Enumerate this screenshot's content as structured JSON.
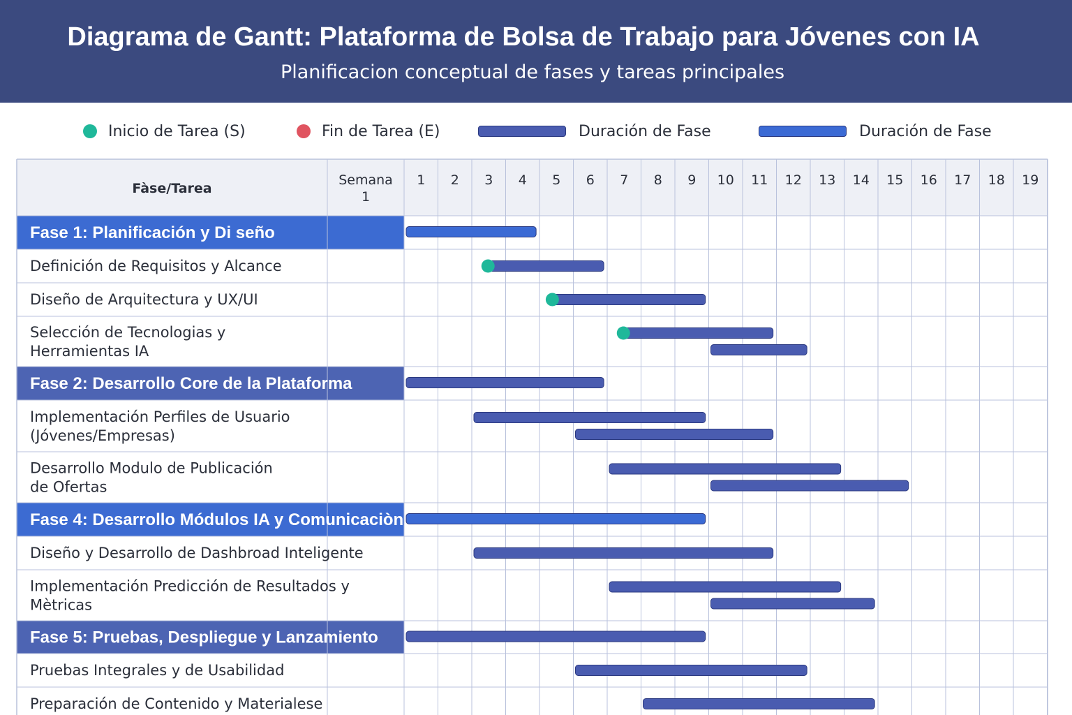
{
  "header": {
    "title": "Diagrama de Gantt: Plataforma de Bolsa de Trabajo para Jóvenes con IA",
    "subtitle": "Planificacion conceptual de fases y tareas principales"
  },
  "legend": [
    {
      "label": "Inicio de Tarea (S)",
      "kind": "dot",
      "color": "#1fb89a"
    },
    {
      "label": "Fin de Tarea (E)",
      "kind": "dot",
      "color": "#e05460"
    },
    {
      "label": "Duración de Fase",
      "kind": "bar",
      "color": "#4a5cb0"
    },
    {
      "label": "Duración de Fase",
      "kind": "bar",
      "color": "#3b6ad4"
    }
  ],
  "colors": {
    "phase_bar": "#4a5cb0",
    "phase_bar_alt": "#3b6ad4",
    "task_bar": "#4a5cb0",
    "start_dot": "#1fb89a",
    "grid": "#b9c2dc",
    "header_bg": "#3b4a7f",
    "phase_row_bg": "#4d64b3",
    "phase_row_bg_alt": "#3c6bd2"
  },
  "table": {
    "task_header": "Fàse/Tarea",
    "week_header": "Semana\n1",
    "week_numbers": [
      "1",
      "2",
      "3",
      "4",
      "5",
      "6",
      "7",
      "8",
      "9",
      "10",
      "11",
      "12",
      "13",
      "14",
      "15",
      "16",
      "17",
      "18",
      "19"
    ]
  },
  "rows": [
    {
      "type": "phase",
      "label": "Fase 1: Planificación y Di seño",
      "alt": true,
      "bars": [
        {
          "start": 1,
          "end": 4.9,
          "style": "phase_alt"
        }
      ]
    },
    {
      "type": "task",
      "label": [
        "Definición de Requisitos y Alcance"
      ],
      "dot": 3,
      "bars": [
        {
          "start": 3.4,
          "end": 6.9
        }
      ]
    },
    {
      "type": "task",
      "label": [
        "Diseño de Arquitectura y UX/UI"
      ],
      "dot": 4.9,
      "bars": [
        {
          "start": 5.3,
          "end": 9.9
        }
      ]
    },
    {
      "type": "task",
      "label": [
        "Selección de Tecnologias y",
        "Herramientas IA"
      ],
      "dot": 7,
      "bars": [
        {
          "start": 7.4,
          "end": 11.9
        },
        {
          "start": 10,
          "end": 12.9
        }
      ]
    },
    {
      "type": "phase",
      "label": "Fase 2: Desarrollo Core de la Plataforma",
      "alt": false,
      "bars": [
        {
          "start": 1,
          "end": 6.9,
          "style": "phase"
        }
      ]
    },
    {
      "type": "task",
      "label": [
        "Implementación Perfiles de Usuario",
        "(Jóvenes/Empresas)"
      ],
      "bars": [
        {
          "start": 3,
          "end": 9.9
        },
        {
          "start": 6,
          "end": 11.9
        }
      ]
    },
    {
      "type": "task",
      "label": [
        "Desarrollo Modulo de Publicación",
        "de Ofertas"
      ],
      "bars": [
        {
          "start": 7,
          "end": 13.9
        },
        {
          "start": 10,
          "end": 15.9
        }
      ]
    },
    {
      "type": "phase",
      "label": "Fase 4: Desarrollo Módulos IA y Comunicaciòn",
      "alt": true,
      "bars": [
        {
          "start": 1,
          "end": 9.9,
          "style": "phase_alt"
        }
      ]
    },
    {
      "type": "task",
      "label": [
        "Diseño y Desarrollo de Dashbroad Inteligente"
      ],
      "bars": [
        {
          "start": 3,
          "end": 11.9
        }
      ]
    },
    {
      "type": "task",
      "label": [
        "Implementación Predicción de Resultados y",
        "Mètricas"
      ],
      "bars": [
        {
          "start": 7,
          "end": 13.9
        },
        {
          "start": 10,
          "end": 14.9
        }
      ]
    },
    {
      "type": "phase",
      "label": "Fase 5: Pruebas, Despliegue y Lanzamiento",
      "alt": false,
      "bars": [
        {
          "start": 1,
          "end": 9.9,
          "style": "phase"
        }
      ]
    },
    {
      "type": "task",
      "label": [
        "Pruebas Integrales y de Usabilidad"
      ],
      "bars": [
        {
          "start": 6,
          "end": 12.9
        }
      ]
    },
    {
      "type": "task",
      "label": [
        "Preparación de Contenido y Materialese"
      ],
      "bars": [
        {
          "start": 8,
          "end": 14.9
        }
      ]
    }
  ]
}
